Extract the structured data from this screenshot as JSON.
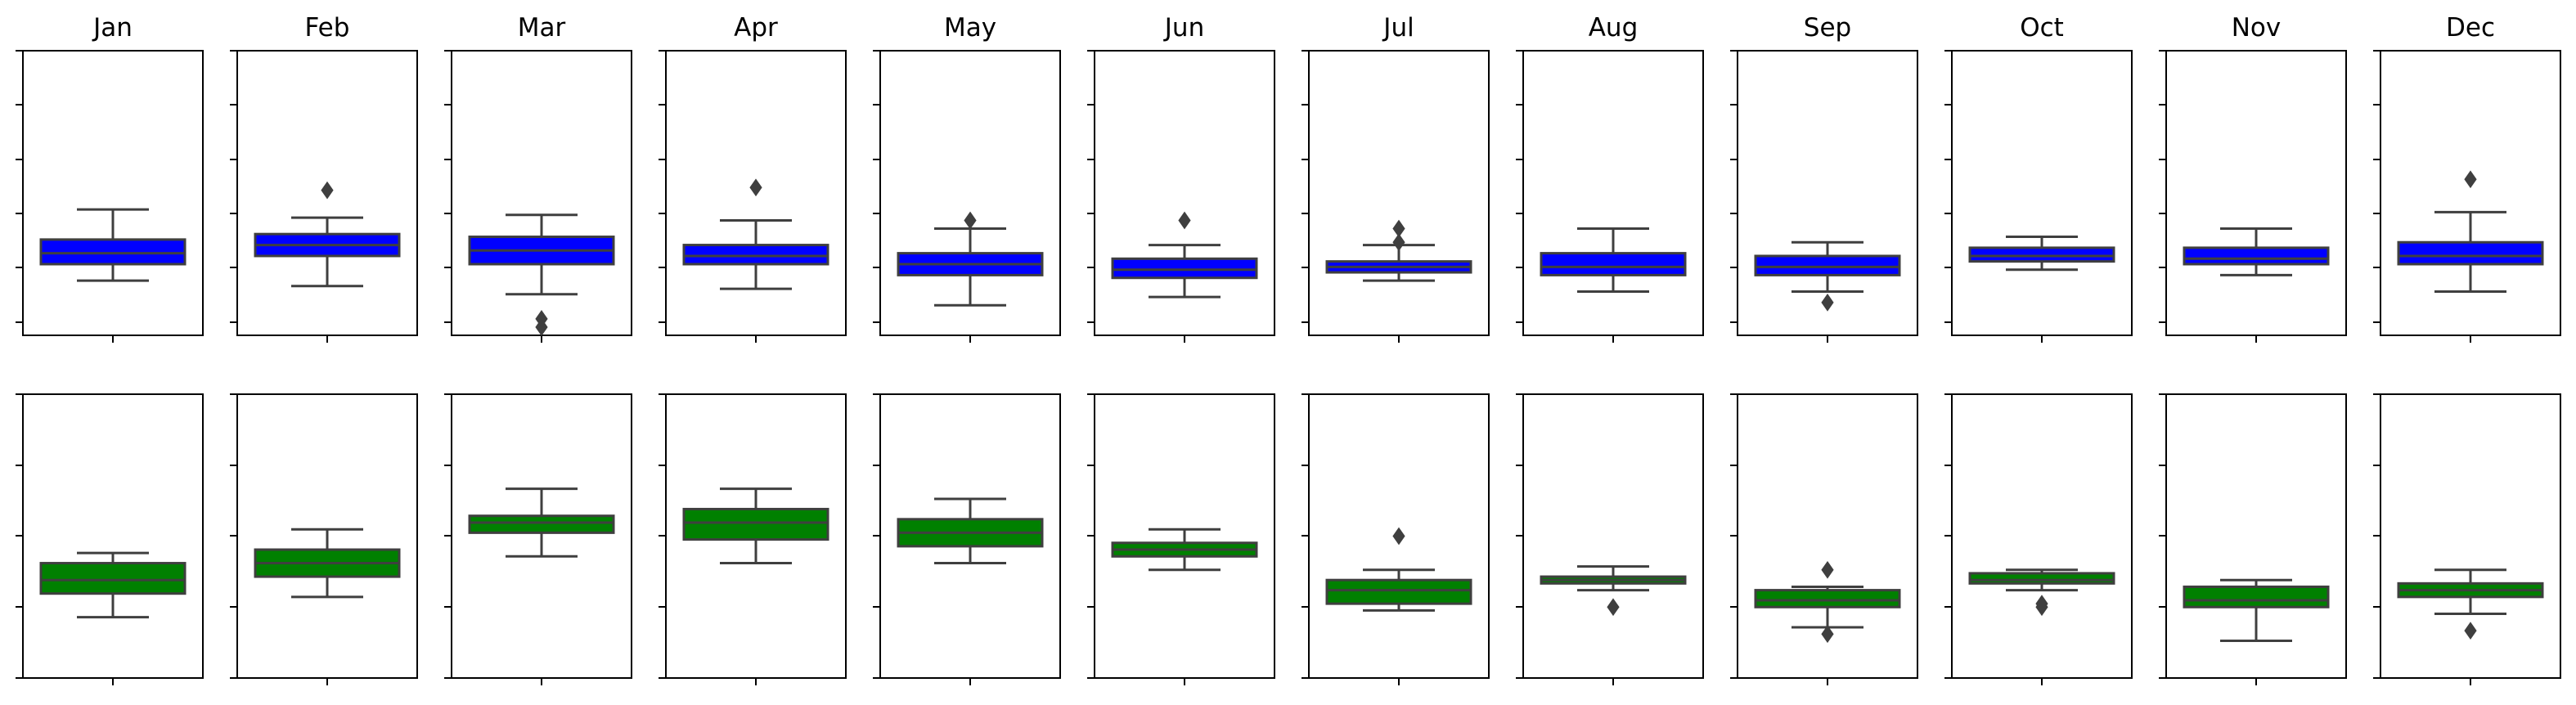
{
  "chart_data": [
    {
      "type": "boxplot",
      "title": "",
      "xlabel": "",
      "ylabel": "",
      "color": "#0000ff",
      "grid": false,
      "categories": [
        "Jan",
        "Feb",
        "Mar",
        "Apr",
        "May",
        "Jun",
        "Jul",
        "Aug",
        "Sep",
        "Oct",
        "Nov",
        "Dec"
      ],
      "ylim": [
        -0.1,
        5.1
      ],
      "boxes": [
        {
          "month": "Jan",
          "whisker_low": 0.9,
          "q1": 1.2,
          "median": 1.4,
          "q3": 1.65,
          "whisker_high": 2.2,
          "outliers": []
        },
        {
          "month": "Feb",
          "whisker_low": 0.8,
          "q1": 1.35,
          "median": 1.55,
          "q3": 1.75,
          "whisker_high": 2.05,
          "outliers": [
            2.55
          ]
        },
        {
          "month": "Mar",
          "whisker_low": 0.65,
          "q1": 1.2,
          "median": 1.45,
          "q3": 1.7,
          "whisker_high": 2.1,
          "outliers": [
            0.05,
            0.2
          ]
        },
        {
          "month": "Apr",
          "whisker_low": 0.75,
          "q1": 1.2,
          "median": 1.35,
          "q3": 1.55,
          "whisker_high": 2.0,
          "outliers": [
            2.6
          ]
        },
        {
          "month": "May",
          "whisker_low": 0.45,
          "q1": 1.0,
          "median": 1.2,
          "q3": 1.4,
          "whisker_high": 1.85,
          "outliers": [
            2.0
          ]
        },
        {
          "month": "Jun",
          "whisker_low": 0.6,
          "q1": 0.95,
          "median": 1.1,
          "q3": 1.3,
          "whisker_high": 1.55,
          "outliers": [
            2.0
          ]
        },
        {
          "month": "Jul",
          "whisker_low": 0.9,
          "q1": 1.05,
          "median": 1.15,
          "q3": 1.25,
          "whisker_high": 1.55,
          "outliers": [
            1.6,
            1.85
          ]
        },
        {
          "month": "Aug",
          "whisker_low": 0.7,
          "q1": 1.0,
          "median": 1.15,
          "q3": 1.4,
          "whisker_high": 1.85,
          "outliers": []
        },
        {
          "month": "Sep",
          "whisker_low": 0.7,
          "q1": 1.0,
          "median": 1.15,
          "q3": 1.35,
          "whisker_high": 1.6,
          "outliers": [
            0.5
          ]
        },
        {
          "month": "Oct",
          "whisker_low": 1.1,
          "q1": 1.25,
          "median": 1.35,
          "q3": 1.5,
          "whisker_high": 1.7,
          "outliers": []
        },
        {
          "month": "Nov",
          "whisker_low": 1.0,
          "q1": 1.2,
          "median": 1.3,
          "q3": 1.5,
          "whisker_high": 1.85,
          "outliers": []
        },
        {
          "month": "Dec",
          "whisker_low": 0.7,
          "q1": 1.2,
          "median": 1.35,
          "q3": 1.6,
          "whisker_high": 2.15,
          "outliers": [
            2.75
          ]
        }
      ]
    },
    {
      "type": "boxplot",
      "title": "",
      "xlabel": "",
      "ylabel": "",
      "color": "#008000",
      "grid": false,
      "categories": [
        "Jan",
        "Feb",
        "Mar",
        "Apr",
        "May",
        "Jun",
        "Jul",
        "Aug",
        "Sep",
        "Oct",
        "Nov",
        "Dec"
      ],
      "ylim": [
        -0.1,
        4.1
      ],
      "boxes": [
        {
          "month": "Jan",
          "whisker_low": 0.8,
          "q1": 1.15,
          "median": 1.35,
          "q3": 1.6,
          "whisker_high": 1.75,
          "outliers": []
        },
        {
          "month": "Feb",
          "whisker_low": 1.1,
          "q1": 1.4,
          "median": 1.6,
          "q3": 1.8,
          "whisker_high": 2.1,
          "outliers": []
        },
        {
          "month": "Mar",
          "whisker_low": 1.7,
          "q1": 2.05,
          "median": 2.2,
          "q3": 2.3,
          "whisker_high": 2.7,
          "outliers": []
        },
        {
          "month": "Apr",
          "whisker_low": 1.6,
          "q1": 1.95,
          "median": 2.2,
          "q3": 2.4,
          "whisker_high": 2.7,
          "outliers": []
        },
        {
          "month": "May",
          "whisker_low": 1.6,
          "q1": 1.85,
          "median": 2.05,
          "q3": 2.25,
          "whisker_high": 2.55,
          "outliers": []
        },
        {
          "month": "Jun",
          "whisker_low": 1.5,
          "q1": 1.7,
          "median": 1.8,
          "q3": 1.9,
          "whisker_high": 2.1,
          "outliers": []
        },
        {
          "month": "Jul",
          "whisker_low": 0.9,
          "q1": 1.0,
          "median": 1.2,
          "q3": 1.35,
          "whisker_high": 1.5,
          "outliers": [
            2.0
          ]
        },
        {
          "month": "Aug",
          "whisker_low": 1.2,
          "q1": 1.3,
          "median": 1.35,
          "q3": 1.4,
          "whisker_high": 1.55,
          "outliers": [
            0.95
          ]
        },
        {
          "month": "Sep",
          "whisker_low": 0.65,
          "q1": 0.95,
          "median": 1.05,
          "q3": 1.2,
          "whisker_high": 1.25,
          "outliers": [
            0.55,
            1.5
          ]
        },
        {
          "month": "Oct",
          "whisker_low": 1.2,
          "q1": 1.3,
          "median": 1.35,
          "q3": 1.45,
          "whisker_high": 1.5,
          "outliers": [
            0.95,
            1.0
          ]
        },
        {
          "month": "Nov",
          "whisker_low": 0.45,
          "q1": 0.95,
          "median": 1.05,
          "q3": 1.25,
          "whisker_high": 1.35,
          "outliers": []
        },
        {
          "month": "Dec",
          "whisker_low": 0.85,
          "q1": 1.1,
          "median": 1.2,
          "q3": 1.3,
          "whisker_high": 1.5,
          "outliers": [
            0.6
          ]
        }
      ]
    }
  ]
}
